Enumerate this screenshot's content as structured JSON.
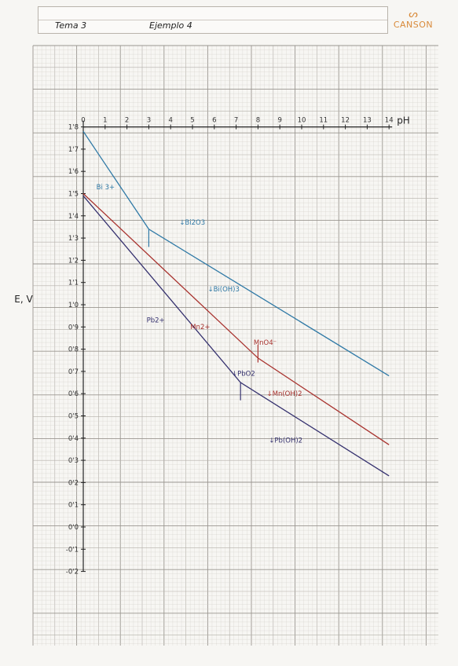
{
  "header": {
    "topic": "Tema   3",
    "example": "Ejemplo 4"
  },
  "logo": {
    "mark": "ᔕ",
    "text": "CANSON"
  },
  "chart_data": {
    "type": "line",
    "xlabel": "pH",
    "ylabel": "E, V",
    "xlim": [
      0,
      14
    ],
    "ylim": [
      -0.2,
      1.8
    ],
    "x_ticks": [
      0,
      1,
      2,
      3,
      4,
      5,
      6,
      7,
      8,
      9,
      10,
      11,
      12,
      13,
      14
    ],
    "y_ticks": [
      {
        "v": 1.8,
        "label": "1'8"
      },
      {
        "v": 1.7,
        "label": "1'7"
      },
      {
        "v": 1.6,
        "label": "1'6"
      },
      {
        "v": 1.5,
        "label": "1'5"
      },
      {
        "v": 1.4,
        "label": "1'4"
      },
      {
        "v": 1.3,
        "label": "1'3"
      },
      {
        "v": 1.2,
        "label": "1'2"
      },
      {
        "v": 1.1,
        "label": "1'1"
      },
      {
        "v": 1.0,
        "label": "1'0"
      },
      {
        "v": 0.9,
        "label": "0'9"
      },
      {
        "v": 0.8,
        "label": "0'8"
      },
      {
        "v": 0.7,
        "label": "0'7"
      },
      {
        "v": 0.6,
        "label": "0'6"
      },
      {
        "v": 0.5,
        "label": "0'5"
      },
      {
        "v": 0.4,
        "label": "0'4"
      },
      {
        "v": 0.3,
        "label": "0'3"
      },
      {
        "v": 0.2,
        "label": "0'2"
      },
      {
        "v": 0.1,
        "label": "0'1"
      },
      {
        "v": 0.0,
        "label": "0'0"
      },
      {
        "v": -0.1,
        "label": "-0'1"
      },
      {
        "v": -0.2,
        "label": "-0'2"
      }
    ],
    "grid": true,
    "series": [
      {
        "key": "bi",
        "color": "#2f79a6",
        "points": [
          [
            0,
            1.78
          ],
          [
            3,
            1.34
          ],
          [
            14,
            0.68
          ]
        ],
        "markers": [
          {
            "x": 3,
            "y_top": 1.34,
            "y_bottom": 1.26
          }
        ]
      },
      {
        "key": "mn",
        "color": "#a8322e",
        "points": [
          [
            0,
            1.5
          ],
          [
            8,
            0.76
          ],
          [
            14,
            0.37
          ]
        ],
        "markers": [
          {
            "x": 8,
            "y_top": 0.82,
            "y_bottom": 0.74
          }
        ]
      },
      {
        "key": "pb",
        "color": "#34306e",
        "points": [
          [
            0,
            1.49
          ],
          [
            7.2,
            0.65
          ],
          [
            14,
            0.23
          ]
        ],
        "markers": [
          {
            "x": 7.2,
            "y_top": 0.65,
            "y_bottom": 0.57
          }
        ]
      }
    ],
    "annotations": [
      {
        "text": "Bi 3+",
        "x": 0.6,
        "y": 1.52,
        "color": "#2f79a6"
      },
      {
        "text": "↓Bi2O3",
        "x": 4.4,
        "y": 1.36,
        "color": "#2f79a6"
      },
      {
        "text": "↓Bi(OH)3",
        "x": 5.7,
        "y": 1.06,
        "color": "#2f79a6"
      },
      {
        "text": "Pb2+",
        "x": 2.9,
        "y": 0.92,
        "color": "#34306e"
      },
      {
        "text": "Mn2+",
        "x": 4.9,
        "y": 0.89,
        "color": "#a8322e"
      },
      {
        "text": "MnO4⁻",
        "x": 7.8,
        "y": 0.82,
        "color": "#a8322e"
      },
      {
        "text": "↓PbO2",
        "x": 6.8,
        "y": 0.68,
        "color": "#34306e"
      },
      {
        "text": "↓Mn(OH)2",
        "x": 8.4,
        "y": 0.59,
        "color": "#a8322e"
      },
      {
        "text": "↓Pb(OH)2",
        "x": 8.5,
        "y": 0.38,
        "color": "#34306e"
      }
    ]
  }
}
